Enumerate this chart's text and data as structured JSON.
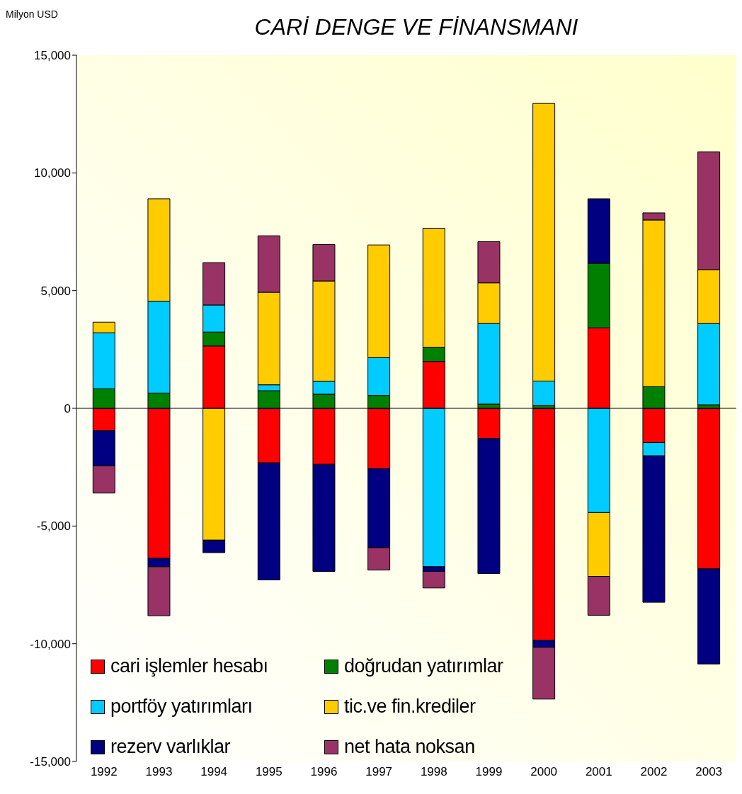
{
  "chart_data": {
    "type": "bar",
    "title": "CARİ DENGE VE FİNANSMANI",
    "ylabel": "Milyon USD",
    "stacked": true,
    "legend": "bottom left",
    "grid": false,
    "categories": [
      "1992",
      "1993",
      "1994",
      "1995",
      "1996",
      "1997",
      "1998",
      "1999",
      "2000",
      "2001",
      "2002",
      "2003"
    ],
    "series": [
      {
        "name": "cari işlemler hesabı",
        "color": "#ff0000",
        "values": [
          -950,
          -6370,
          2650,
          -2320,
          -2380,
          -2560,
          1990,
          -1280,
          -9850,
          3420,
          -1460,
          -6820
        ]
      },
      {
        "name": "doğrudan yatırımlar",
        "color": "#008000",
        "values": [
          830,
          650,
          590,
          750,
          600,
          550,
          600,
          180,
          120,
          2740,
          920,
          150
        ]
      },
      {
        "name": "portföy yatırımları",
        "color": "#00ccff",
        "values": [
          2380,
          3900,
          1150,
          250,
          550,
          1600,
          -6730,
          3420,
          1040,
          -4430,
          -560,
          3450
        ]
      },
      {
        "name": "tic.ve fin.krediler",
        "color": "#ffcc00",
        "values": [
          450,
          4350,
          -5600,
          3930,
          4260,
          4790,
          5060,
          1730,
          11790,
          -2710,
          7080,
          2290
        ]
      },
      {
        "name": "rezerv varlıklar",
        "color": "#000080",
        "values": [
          -1490,
          -360,
          -530,
          -4970,
          -4550,
          -3360,
          -200,
          -5740,
          -300,
          2740,
          -6220,
          -4040
        ]
      },
      {
        "name": "net hata noksan",
        "color": "#993366",
        "values": [
          -1160,
          -2080,
          1800,
          2400,
          1550,
          -950,
          -700,
          1750,
          -2200,
          -1650,
          300,
          5000
        ]
      }
    ],
    "ref_lines": [
      {
        "axis": "y",
        "value": 0,
        "color": "#000000"
      }
    ],
    "ylim": [
      -15000,
      15000
    ],
    "yticks": [
      {
        "value": -15000,
        "label": "-15,000"
      },
      {
        "value": -10000,
        "label": "-10,000"
      },
      {
        "value": -5000,
        "label": "-5,000"
      },
      0,
      {
        "value": 5000,
        "label": "5,000"
      },
      {
        "value": 10000,
        "label": "10,000"
      },
      {
        "value": 15000,
        "label": "15,000"
      }
    ]
  }
}
